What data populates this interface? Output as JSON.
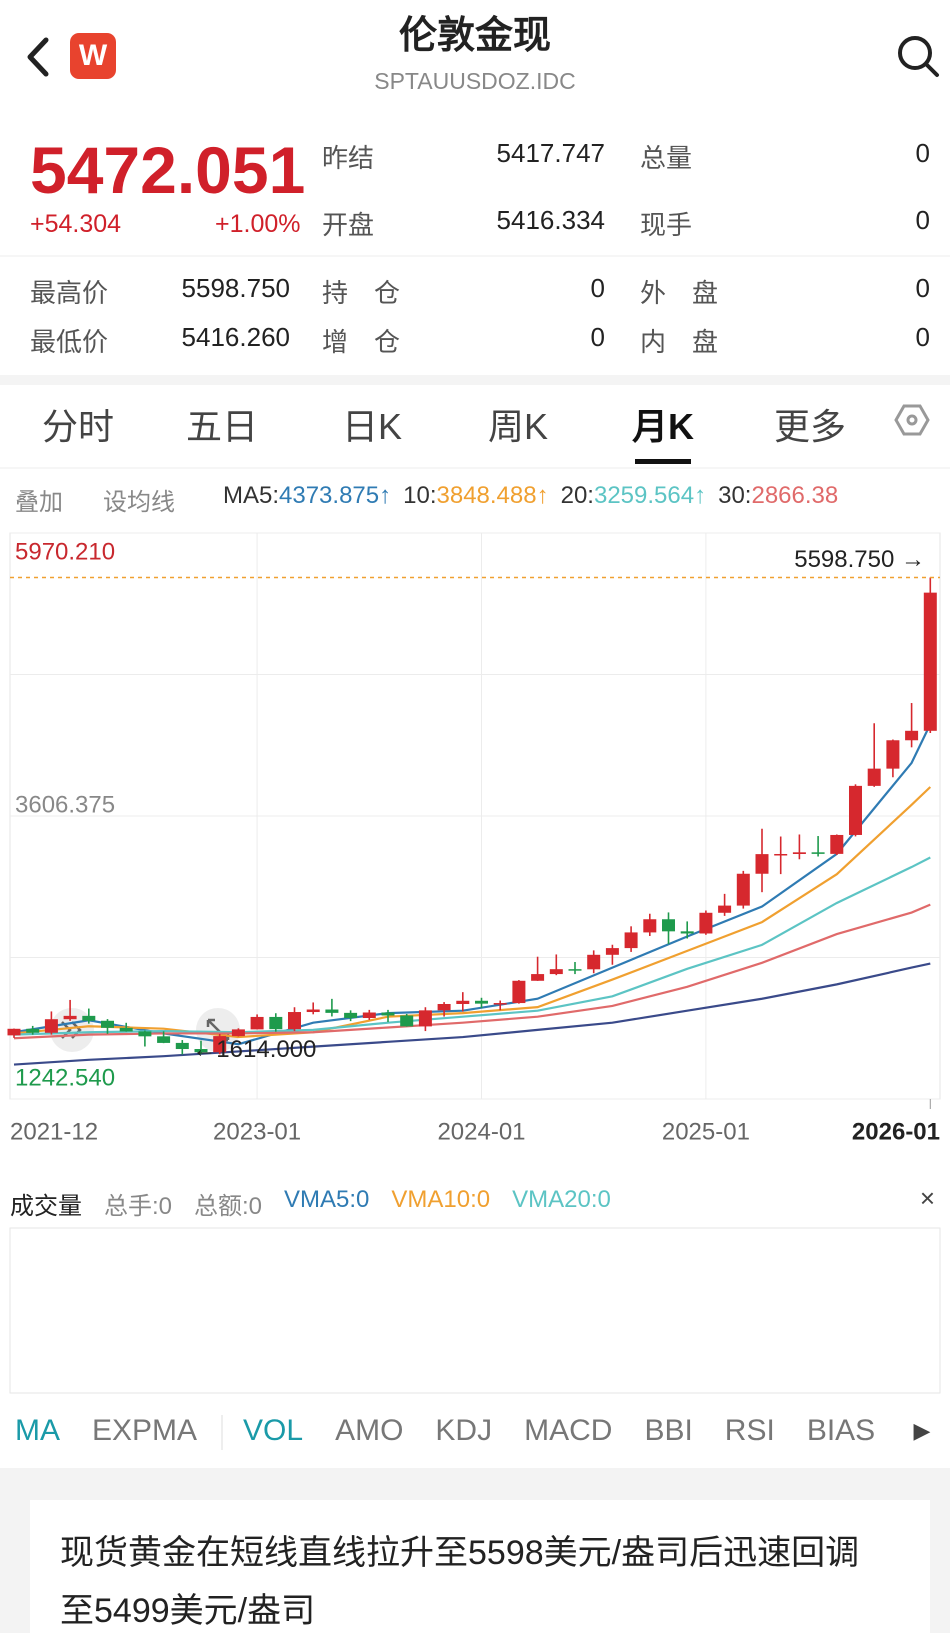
{
  "header": {
    "logo": "W",
    "title": "伦敦金现",
    "code": "SPTAUUSDOZ.IDC"
  },
  "quote": {
    "price": "5472.051",
    "change": "+54.304",
    "change_pct": "+1.00%",
    "top_stats": [
      [
        "昨结",
        "5417.747",
        "总量",
        "0"
      ],
      [
        "开盘",
        "5416.334",
        "现手",
        "0"
      ]
    ],
    "range_stats": [
      [
        "最高价",
        "5598.750",
        "持　仓",
        "0",
        "外　盘",
        "0"
      ],
      [
        "最低价",
        "5416.260",
        "增　仓",
        "0",
        "内　盘",
        "0"
      ]
    ]
  },
  "tabs": {
    "items": [
      "分时",
      "五日",
      "日K",
      "周K",
      "月K",
      "更多"
    ],
    "active": 4
  },
  "ma_bar": {
    "tools": [
      "叠加",
      "设均线"
    ],
    "items": [
      {
        "label": "MA5:",
        "value": "4373.875↑",
        "color": "#2f7bb3"
      },
      {
        "label": "10:",
        "value": "3848.488↑",
        "color": "#f0a030"
      },
      {
        "label": "20:",
        "value": "3259.564↑",
        "color": "#5cc4c4"
      },
      {
        "label": "30:",
        "value": "2866.38",
        "color": "#e06a6a"
      }
    ]
  },
  "chart_data": {
    "type": "candlestick",
    "categories": [
      "2021-12",
      null,
      null,
      null,
      null,
      null,
      null,
      null,
      null,
      null,
      null,
      null,
      null,
      "2023-01",
      null,
      null,
      null,
      null,
      null,
      null,
      null,
      null,
      null,
      null,
      null,
      "2024-01",
      null,
      null,
      null,
      null,
      null,
      null,
      null,
      null,
      null,
      null,
      null,
      "2025-01",
      null,
      null,
      null,
      null,
      null,
      null,
      null,
      null,
      null,
      null,
      null,
      "2026-01"
    ],
    "open": [
      1774,
      1829,
      1796,
      1909,
      1937,
      1896,
      1837,
      1807,
      1766,
      1711,
      1660,
      1633,
      1768,
      1824,
      1928,
      1826,
      1969,
      1990,
      1962,
      1919,
      1965,
      1940,
      1849,
      1983,
      2036,
      2063,
      2039,
      2044,
      2230,
      2286,
      2327,
      2326,
      2447,
      2503,
      2634,
      2744,
      2643,
      2625,
      2798,
      2858,
      3124,
      3288,
      3289,
      3303,
      3290,
      3448,
      3858,
      4002,
      4239,
      4318
    ],
    "high": [
      1831,
      1853,
      1974,
      2070,
      1998,
      1910,
      1879,
      1814,
      1808,
      1735,
      1730,
      1786,
      1833,
      1949,
      1959,
      2009,
      2049,
      2079,
      1983,
      1987,
      1987,
      1953,
      2009,
      2052,
      2135,
      2088,
      2065,
      2236,
      2431,
      2450,
      2387,
      2484,
      2531,
      2685,
      2790,
      2801,
      2726,
      2817,
      2956,
      3148,
      3500,
      3435,
      3452,
      3439,
      3452,
      3871,
      4381,
      4245,
      4550,
      5598.75
    ],
    "low": [
      1753,
      1780,
      1780,
      1895,
      1872,
      1787,
      1805,
      1681,
      1709,
      1614,
      1617,
      1616,
      1765,
      1823,
      1805,
      1810,
      1950,
      1932,
      1893,
      1903,
      1885,
      1847,
      1810,
      1931,
      1973,
      2002,
      1984,
      2039,
      2229,
      2277,
      2286,
      2293,
      2364,
      2471,
      2604,
      2536,
      2583,
      2614,
      2772,
      2833,
      2970,
      3121,
      3245,
      3268,
      3281,
      3436,
      3850,
      3930,
      4180,
      4300
    ],
    "close": [
      1829,
      1796,
      1909,
      1937,
      1896,
      1837,
      1807,
      1766,
      1711,
      1660,
      1633,
      1768,
      1824,
      1928,
      1826,
      1969,
      1990,
      1962,
      1919,
      1965,
      1940,
      1849,
      1983,
      2036,
      2063,
      2039,
      2044,
      2230,
      2286,
      2327,
      2326,
      2447,
      2503,
      2634,
      2744,
      2643,
      2625,
      2798,
      2858,
      3124,
      3288,
      3289,
      3303,
      3290,
      3448,
      3858,
      4002,
      4239,
      4318,
      5472.051
    ],
    "up_color": "#d6282e",
    "down_color": "#1e9a4c",
    "ma_lines": [
      {
        "color": "#2f7bb3",
        "x": [
          0,
          4,
          8,
          12,
          16,
          20,
          24,
          28,
          32,
          36,
          40,
          44,
          48,
          49
        ],
        "values": [
          1800,
          1900,
          1790,
          1700,
          1880,
          1960,
          1980,
          2080,
          2340,
          2600,
          2850,
          3290,
          4050,
          4373.875
        ]
      },
      {
        "color": "#f0a030",
        "x": [
          0,
          4,
          8,
          12,
          16,
          20,
          24,
          28,
          32,
          36,
          40,
          44,
          48,
          49
        ],
        "values": [
          1790,
          1850,
          1830,
          1760,
          1800,
          1930,
          1960,
          2010,
          2240,
          2480,
          2720,
          3120,
          3700,
          3848.488
        ]
      },
      {
        "color": "#5cc4c4",
        "x": [
          0,
          4,
          8,
          12,
          16,
          20,
          24,
          28,
          32,
          36,
          40,
          44,
          48,
          49
        ],
        "values": [
          1780,
          1800,
          1810,
          1800,
          1820,
          1880,
          1930,
          1980,
          2100,
          2330,
          2530,
          2880,
          3180,
          3259.564
        ]
      },
      {
        "color": "#e06a6a",
        "x": [
          0,
          4,
          8,
          12,
          16,
          20,
          24,
          28,
          32,
          36,
          40,
          44,
          48,
          49
        ],
        "values": [
          1750,
          1780,
          1790,
          1790,
          1800,
          1840,
          1880,
          1930,
          2020,
          2180,
          2380,
          2620,
          2800,
          2866.38
        ]
      },
      {
        "color": "#3a4a8a",
        "x": [
          0,
          4,
          8,
          12,
          16,
          20,
          24,
          28,
          32,
          36,
          40,
          44,
          48,
          49
        ],
        "values": [
          1530,
          1570,
          1600,
          1640,
          1680,
          1720,
          1760,
          1820,
          1880,
          1980,
          2080,
          2200,
          2340,
          2374
        ]
      }
    ],
    "ylim": [
      1242.54,
      5970.21
    ],
    "yticks": [
      {
        "value": 5970.21,
        "label": "5970.210"
      },
      {
        "value": 3606.375,
        "label": "3606.375"
      },
      {
        "value": 1242.54,
        "label": "1242.540"
      }
    ],
    "high_mark": {
      "value": 5598.75,
      "label": "5598.750 →"
    },
    "low_mark": {
      "value": 1614,
      "label": "←1614.000"
    },
    "grid": true
  },
  "volume": {
    "title": "成交量",
    "items": [
      {
        "text": "总手:0",
        "color": "#888888"
      },
      {
        "text": "总额:0",
        "color": "#888888"
      },
      {
        "text": "VMA5:0",
        "color": "#2f7bb3"
      },
      {
        "text": "VMA10:0",
        "color": "#f0a030"
      },
      {
        "text": "VMA20:0",
        "color": "#5cc4c4"
      }
    ]
  },
  "indicators": {
    "items": [
      "MA",
      "EXPMA",
      "VOL",
      "AMO",
      "KDJ",
      "MACD",
      "BBI",
      "RSI",
      "BIAS"
    ],
    "active": [
      0,
      2
    ]
  },
  "news": "现货黄金在短线直线拉升至5598美元/盎司后迅速回调至5499美元/盎司"
}
